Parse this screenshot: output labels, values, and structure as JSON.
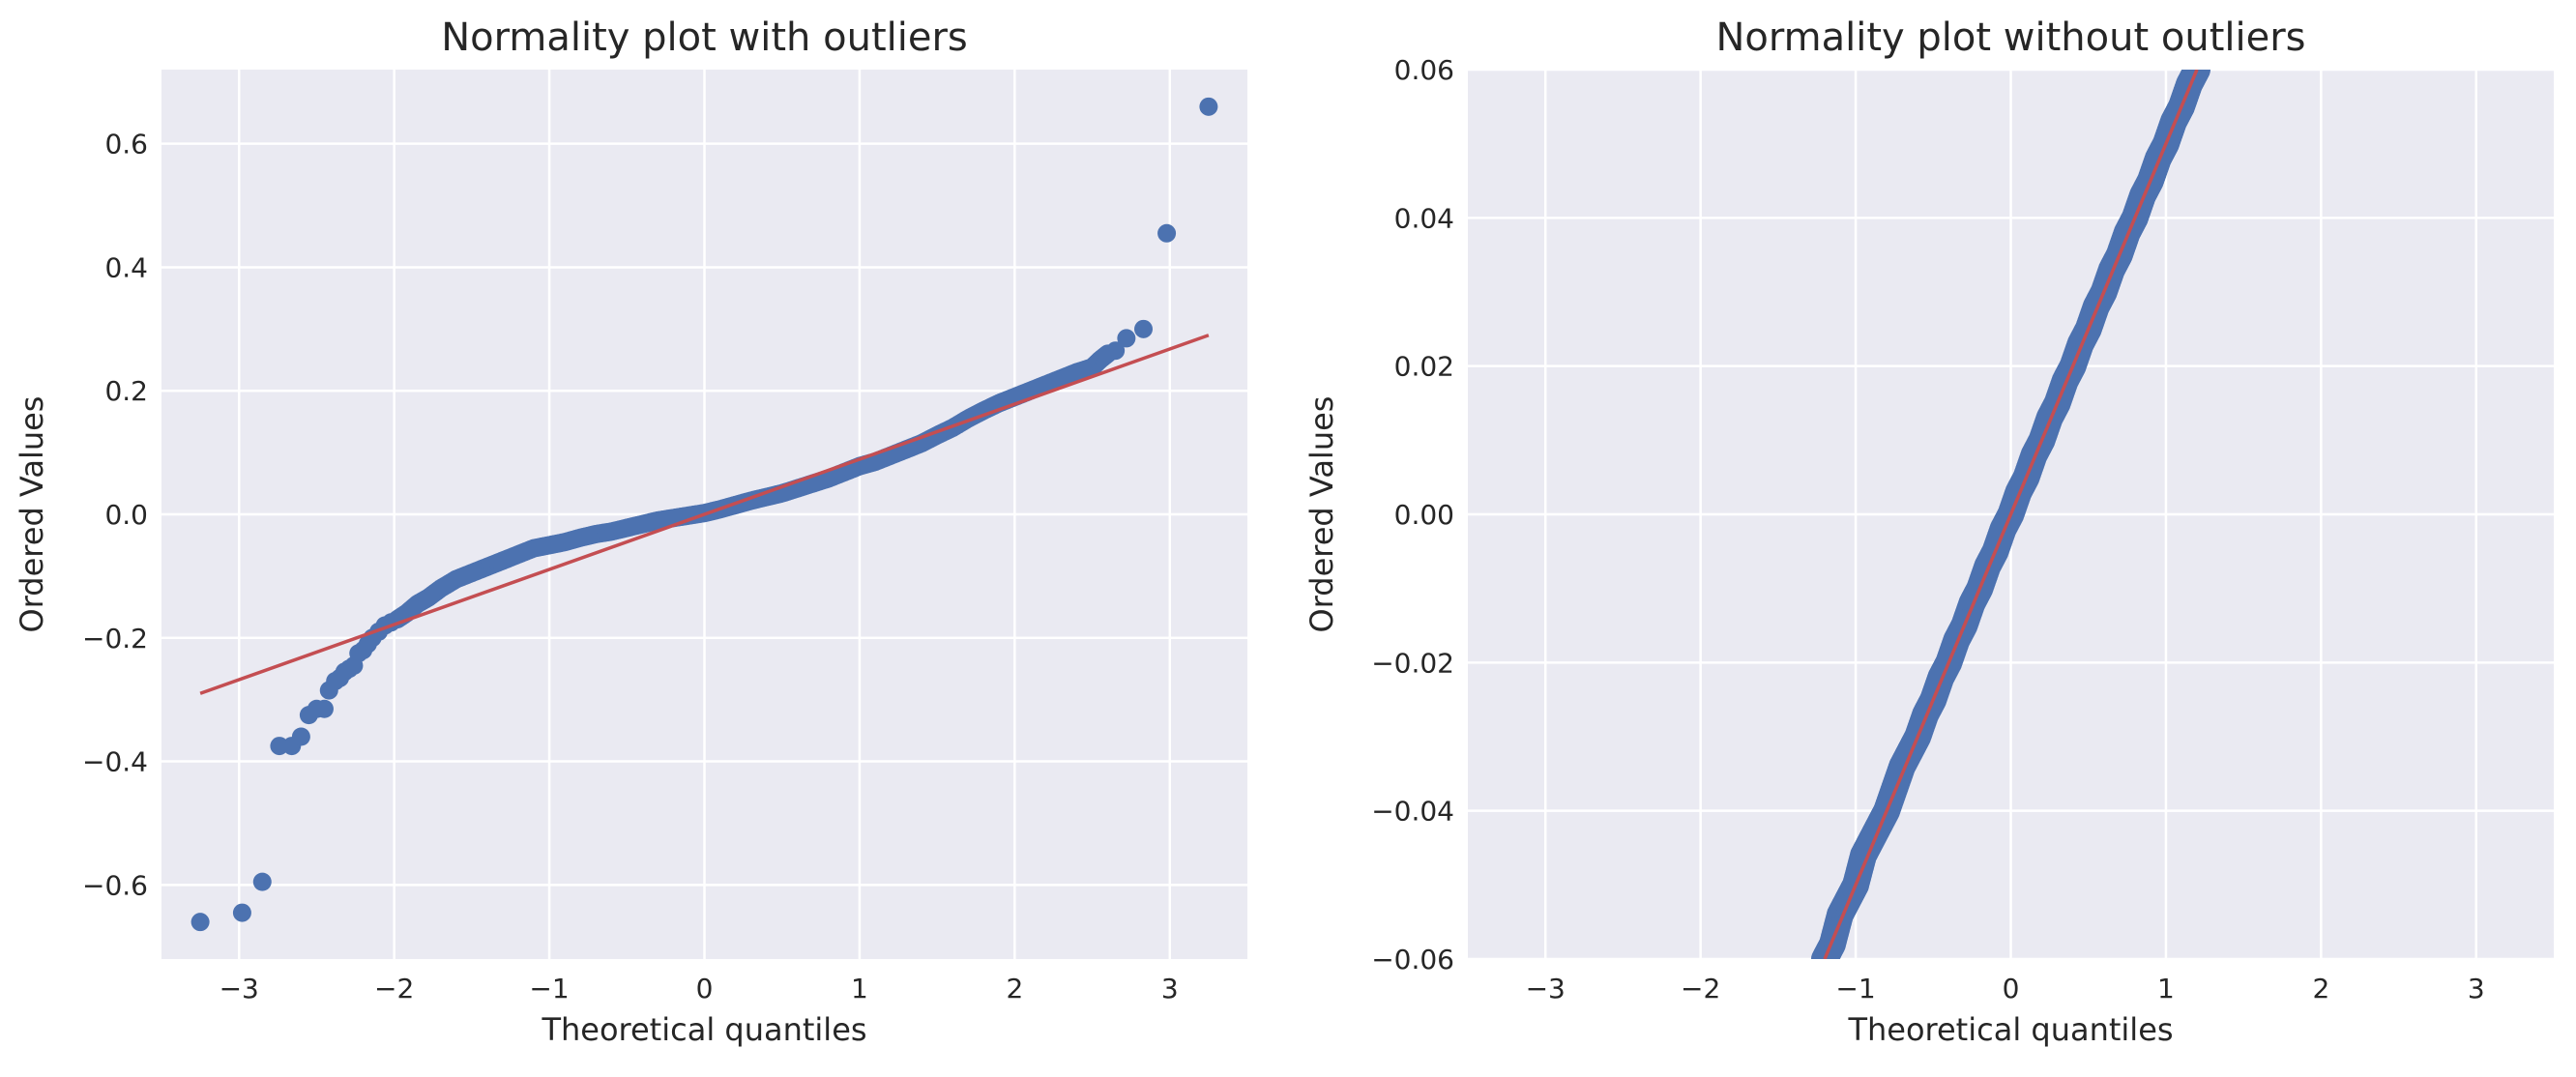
{
  "chart_data": [
    {
      "type": "scatter",
      "title": "Normality plot with outliers",
      "xlabel": "Theoretical quantiles",
      "ylabel": "Ordered Values",
      "xlim": [
        -3.5,
        3.5
      ],
      "ylim": [
        -0.72,
        0.72
      ],
      "xticks": [
        -3,
        -2,
        -1,
        0,
        1,
        2,
        3
      ],
      "xtick_labels": [
        "−3",
        "−2",
        "−1",
        "0",
        "1",
        "2",
        "3"
      ],
      "yticks": [
        -0.6,
        -0.4,
        -0.2,
        0.0,
        0.2,
        0.4,
        0.6
      ],
      "ytick_labels": [
        "−0.6",
        "−0.4",
        "−0.2",
        "0.0",
        "0.2",
        "0.4",
        "0.6"
      ],
      "grid": true,
      "marker_color": "#4c72b0",
      "line_color": "#c44e52",
      "fit_line": {
        "x": [
          -3.25,
          3.25
        ],
        "y": [
          -0.29,
          0.29
        ]
      },
      "points": {
        "x": [
          -3.25,
          -2.98,
          -2.85,
          -2.74,
          -2.66,
          -2.6,
          -2.55,
          -2.5,
          -2.45,
          -2.42,
          -2.38,
          -2.35,
          -2.32,
          -2.29,
          -2.26,
          -2.23,
          -2.2,
          -2.17,
          -2.14,
          -2.1,
          -2.06,
          -2.02,
          -1.98,
          -1.92,
          -1.85,
          -1.78,
          -1.7,
          -1.6,
          -1.5,
          -1.4,
          -1.3,
          -1.2,
          -1.1,
          -1.0,
          -0.9,
          -0.8,
          -0.7,
          -0.6,
          -0.5,
          -0.4,
          -0.3,
          -0.2,
          -0.1,
          0.0,
          0.1,
          0.2,
          0.3,
          0.4,
          0.5,
          0.6,
          0.7,
          0.8,
          0.9,
          1.0,
          1.1,
          1.2,
          1.3,
          1.4,
          1.5,
          1.6,
          1.7,
          1.8,
          1.9,
          2.0,
          2.1,
          2.2,
          2.3,
          2.4,
          2.5,
          2.55,
          2.6,
          2.65,
          2.72,
          2.83,
          2.98,
          3.25
        ],
        "y": [
          -0.66,
          -0.645,
          -0.595,
          -0.375,
          -0.375,
          -0.36,
          -0.325,
          -0.315,
          -0.315,
          -0.285,
          -0.27,
          -0.265,
          -0.255,
          -0.25,
          -0.245,
          -0.225,
          -0.22,
          -0.21,
          -0.2,
          -0.19,
          -0.18,
          -0.175,
          -0.17,
          -0.16,
          -0.145,
          -0.135,
          -0.12,
          -0.105,
          -0.095,
          -0.085,
          -0.075,
          -0.065,
          -0.055,
          -0.05,
          -0.045,
          -0.038,
          -0.032,
          -0.028,
          -0.022,
          -0.016,
          -0.01,
          -0.006,
          -0.002,
          0.002,
          0.008,
          0.015,
          0.022,
          0.028,
          0.034,
          0.042,
          0.05,
          0.058,
          0.068,
          0.078,
          0.085,
          0.095,
          0.105,
          0.115,
          0.128,
          0.14,
          0.155,
          0.168,
          0.18,
          0.19,
          0.2,
          0.21,
          0.22,
          0.23,
          0.238,
          0.25,
          0.26,
          0.265,
          0.285,
          0.3,
          0.455,
          0.66
        ]
      }
    },
    {
      "type": "scatter",
      "title": "Normality plot without outliers",
      "xlabel": "Theoretical quantiles",
      "ylabel": "Ordered Values",
      "xlim": [
        -3.5,
        3.5
      ],
      "ylim": [
        -0.06,
        0.06
      ],
      "xticks": [
        -3,
        -2,
        -1,
        0,
        1,
        2,
        3
      ],
      "xtick_labels": [
        "−3",
        "−2",
        "−1",
        "0",
        "1",
        "2",
        "3"
      ],
      "yticks": [
        -0.06,
        -0.04,
        -0.02,
        0.0,
        0.02,
        0.04,
        0.06
      ],
      "ytick_labels": [
        "−0.06",
        "−0.04",
        "−0.02",
        "0.00",
        "0.02",
        "0.04",
        "0.06"
      ],
      "grid": true,
      "marker_color": "#4c72b0",
      "line_color": "#c44e52",
      "fit_line": {
        "x": [
          -1.2,
          1.2
        ],
        "y": [
          -0.06,
          0.06
        ]
      },
      "points": {
        "x": [
          -1.2,
          -1.15,
          -1.1,
          -1.05,
          -1.0,
          -0.95,
          -0.9,
          -0.85,
          -0.8,
          -0.75,
          -0.7,
          -0.65,
          -0.6,
          -0.55,
          -0.5,
          -0.45,
          -0.4,
          -0.35,
          -0.3,
          -0.25,
          -0.2,
          -0.15,
          -0.1,
          -0.05,
          0.0,
          0.05,
          0.1,
          0.15,
          0.2,
          0.25,
          0.3,
          0.35,
          0.4,
          0.45,
          0.5,
          0.55,
          0.6,
          0.65,
          0.7,
          0.75,
          0.8,
          0.85,
          0.9,
          0.95,
          1.0,
          1.05,
          1.1,
          1.15,
          1.2
        ],
        "y": [
          -0.06,
          -0.058,
          -0.054,
          -0.052,
          -0.05,
          -0.046,
          -0.044,
          -0.042,
          -0.04,
          -0.037,
          -0.034,
          -0.032,
          -0.03,
          -0.027,
          -0.025,
          -0.022,
          -0.02,
          -0.017,
          -0.015,
          -0.012,
          -0.01,
          -0.007,
          -0.005,
          -0.002,
          0.0,
          0.003,
          0.005,
          0.008,
          0.01,
          0.013,
          0.015,
          0.018,
          0.02,
          0.023,
          0.025,
          0.028,
          0.03,
          0.033,
          0.035,
          0.038,
          0.04,
          0.043,
          0.045,
          0.048,
          0.05,
          0.053,
          0.055,
          0.058,
          0.06
        ]
      }
    }
  ]
}
